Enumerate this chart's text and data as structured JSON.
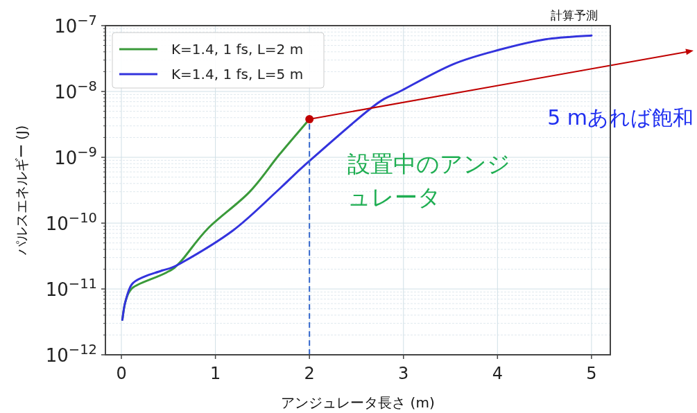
{
  "chart_data": {
    "type": "line",
    "title": "計算予測",
    "xlabel": "アンジュレータ長さ (m)",
    "ylabel": "パルスエネルギー (J)",
    "xlim": [
      -0.17,
      5.2
    ],
    "ylim": [
      1e-12,
      1e-07
    ],
    "log": "y",
    "grid": true,
    "legend": "top left",
    "line_style": "solid",
    "marker": "none",
    "xticks": [
      0,
      1,
      2,
      3,
      4,
      5
    ],
    "yticks": [
      {
        "value": 1e-12,
        "label": "10$^{−12}$"
      },
      {
        "value": 1e-11,
        "label": "10$^{−11}$"
      },
      {
        "value": 1e-10,
        "label": "10$^{−10}$"
      },
      {
        "value": 1e-09,
        "label": "10$^{−9}$"
      },
      {
        "value": 1e-08,
        "label": "10$^{−8}$"
      },
      {
        "value": 1e-07,
        "label": "10$^{−7}$"
      }
    ],
    "series": [
      {
        "name": "K=1.4, 1 fs, L=2 m",
        "color": "#3a9a3a",
        "x": [
          0.01,
          0.04,
          0.09,
          0.18,
          0.48,
          0.63,
          0.92,
          1.36,
          1.68,
          2.0
        ],
        "values": [
          3.4e-12,
          6.2e-12,
          9.3e-12,
          1.17e-11,
          1.78e-11,
          2.6e-11,
          8.3e-11,
          2.95e-10,
          1.1e-09,
          3.8e-09
        ]
      },
      {
        "name": "K=1.4, 1 fs, L=5 m",
        "color": "#3333dd",
        "x": [
          0.01,
          0.04,
          0.11,
          0.25,
          0.43,
          0.63,
          1.19,
          1.68,
          1.98,
          2.67,
          2.99,
          3.53,
          4.02,
          4.51,
          5.0
        ],
        "values": [
          3.4e-12,
          6.2e-12,
          1.17e-11,
          1.55e-11,
          1.9e-11,
          2.45e-11,
          7.8e-11,
          3.3e-10,
          8.3e-10,
          5.8e-09,
          1.05e-08,
          2.6e-08,
          4.3e-08,
          6.2e-08,
          7.1e-08
        ]
      }
    ],
    "ref_lines": [
      {
        "axis": "x",
        "value": 2,
        "label": "設置中のアンジュレータ",
        "color": "#3366cc",
        "line_style": "dashed"
      }
    ],
    "annotations": [
      "5 mあれば飽和"
    ]
  }
}
